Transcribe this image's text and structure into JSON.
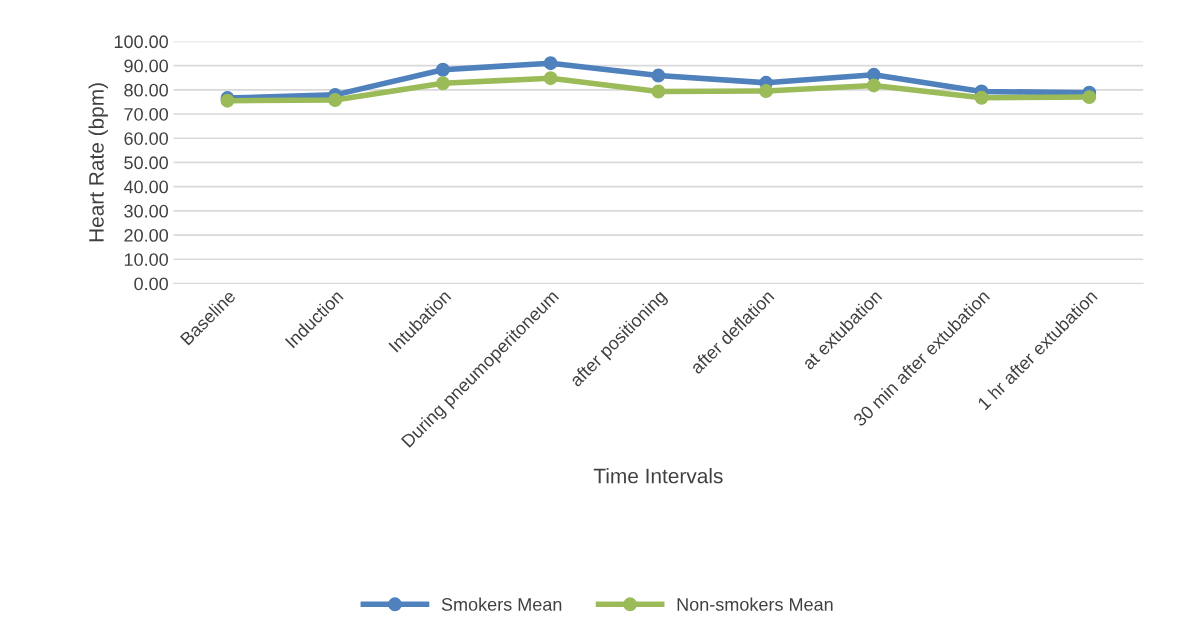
{
  "chart_data": {
    "type": "line",
    "xlabel": "Time Intervals",
    "ylabel": "Heart Rate (bpm)",
    "categories": [
      "Baseline",
      "Induction",
      "Intubation",
      "During pneumoperitoneum",
      "after positioning",
      "after deflation",
      "at extubation",
      "30 min after extubation",
      "1 hr after extubation"
    ],
    "series": [
      {
        "name": "Smokers Mean",
        "color": "#4f81bd",
        "values": [
          76.6,
          77.9,
          88.3,
          91.0,
          85.9,
          82.9,
          86.2,
          79.3,
          78.8
        ]
      },
      {
        "name": "Non-smokers Mean",
        "color": "#9bbb59",
        "values": [
          75.5,
          75.8,
          82.7,
          84.8,
          79.3,
          79.5,
          81.8,
          76.7,
          77.0
        ]
      }
    ],
    "ylim": [
      0,
      100
    ],
    "yticks": [
      {
        "value": 0,
        "label": "0.00"
      },
      {
        "value": 10,
        "label": "10.00"
      },
      {
        "value": 20,
        "label": "20.00"
      },
      {
        "value": 30,
        "label": "30.00"
      },
      {
        "value": 40,
        "label": "40.00"
      },
      {
        "value": 50,
        "label": "50.00"
      },
      {
        "value": 60,
        "label": "60.00"
      },
      {
        "value": 70,
        "label": "70.00"
      },
      {
        "value": 80,
        "label": "80.00"
      },
      {
        "value": 90,
        "label": "90.00"
      },
      {
        "value": 100,
        "label": "100.00"
      }
    ],
    "grid": "y",
    "legend": "bottom",
    "marker": "circle",
    "line_style": "solid"
  }
}
